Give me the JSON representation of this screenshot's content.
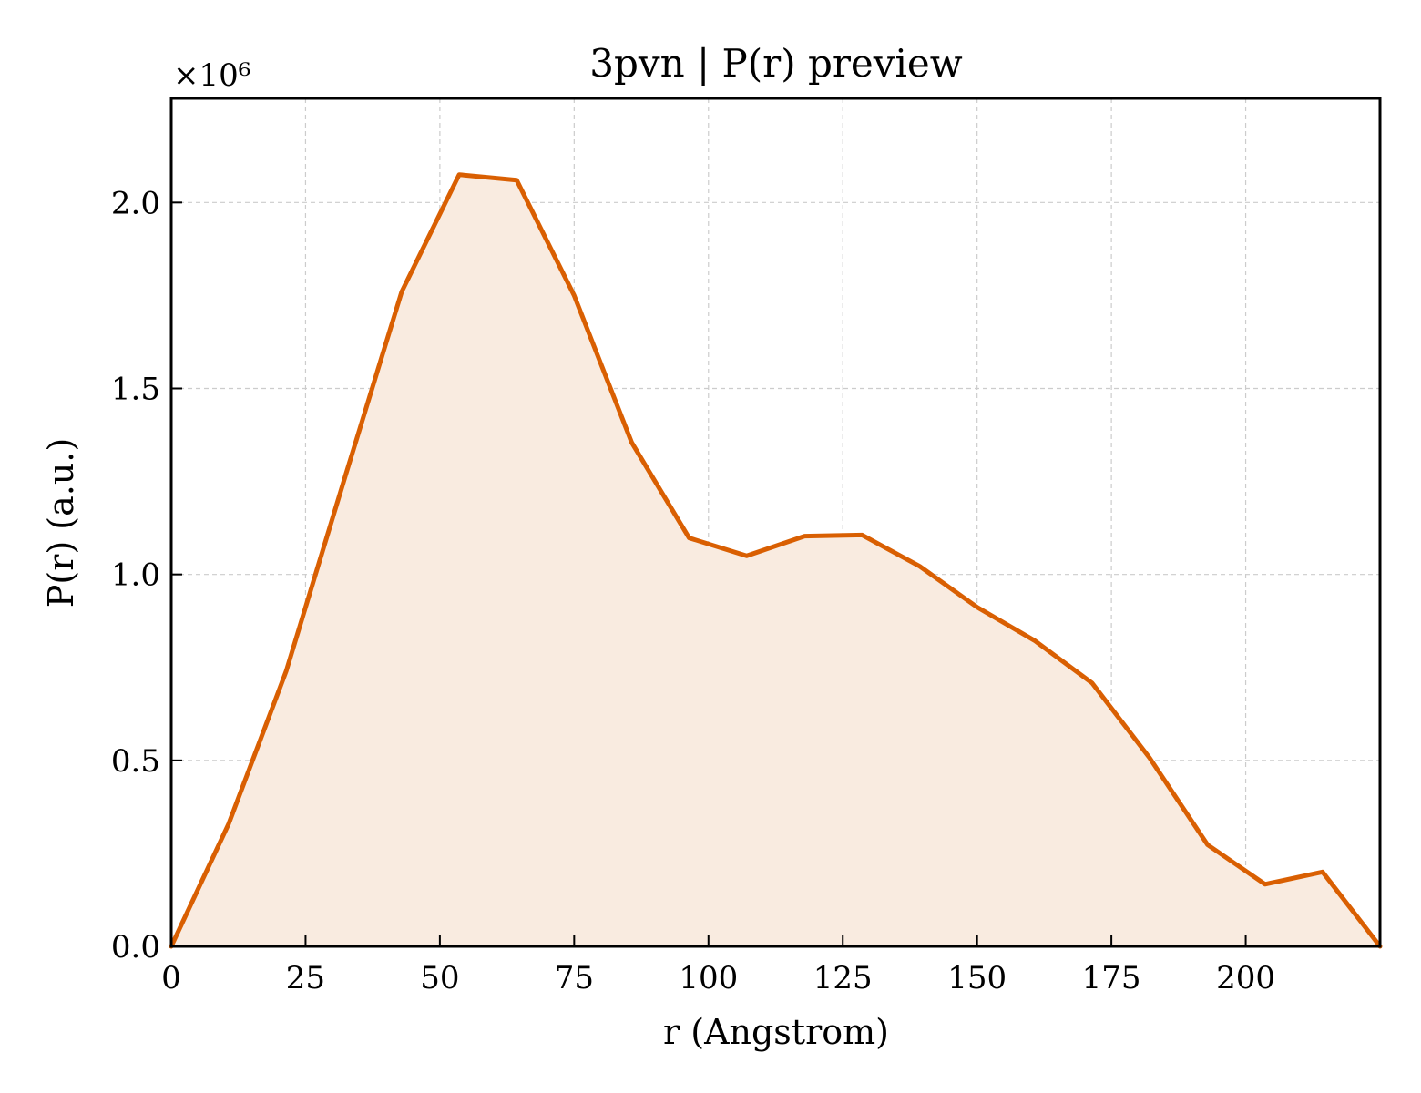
{
  "chart_data": {
    "type": "area",
    "title": "3pvn | P(r) preview",
    "xlabel": "r (Angstrom)",
    "ylabel": "P(r) (a.u.)",
    "y_multiplier_label": "×10⁶",
    "y_scale": 1000000,
    "xlim": [
      0,
      225
    ],
    "ylim": [
      0,
      2280000
    ],
    "x_ticks": [
      0,
      25,
      50,
      75,
      100,
      125,
      150,
      175,
      200
    ],
    "y_ticks": [
      0,
      500000,
      1000000,
      1500000,
      2000000
    ],
    "y_tick_labels": [
      "0.0",
      "0.5",
      "1.0",
      "1.5",
      "2.0"
    ],
    "grid": true,
    "colors": {
      "line": "#d95f02",
      "fill": "#f9ebe0"
    },
    "series": [
      {
        "x": [
          0,
          10.7,
          21.4,
          32.1,
          42.9,
          53.6,
          64.3,
          75.0,
          85.7,
          96.4,
          107.1,
          117.9,
          128.6,
          139.3,
          150.0,
          160.7,
          171.4,
          182.1,
          192.9,
          203.6,
          214.3,
          225.0
        ],
        "y": [
          0,
          330000,
          740000,
          1250000,
          1760000,
          2075000,
          2060000,
          1750000,
          1355000,
          1098000,
          1050000,
          1103000,
          1106000,
          1022000,
          912000,
          822000,
          708000,
          507000,
          273000,
          167000,
          200000,
          0
        ]
      }
    ]
  }
}
